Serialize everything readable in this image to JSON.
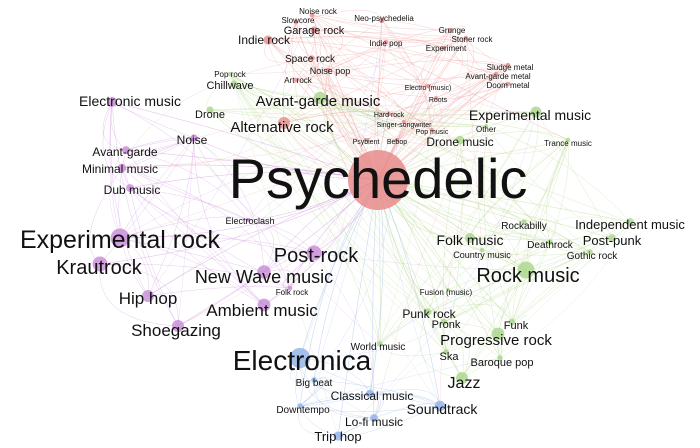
{
  "colors": {
    "red": "#e88b8b",
    "green": "#a9d68a",
    "purple": "#c78ad6",
    "blue": "#8fb1e6",
    "edge_red": "#f0a0a0",
    "edge_green": "#b7d98f",
    "edge_purple": "#cf95e0",
    "edge_blue": "#9fb9ea"
  },
  "hub": "Psychedelic",
  "nodes": [
    {
      "id": "psychedelic",
      "label": "Psychedelic",
      "group": "red",
      "weight": 100
    },
    {
      "id": "noise-rock",
      "label": "Noise rock",
      "group": "red",
      "weight": 2
    },
    {
      "id": "slowcore",
      "label": "Slowcore",
      "group": "red",
      "weight": 2
    },
    {
      "id": "neo-psychedelia",
      "label": "Neo-psychedelia",
      "group": "red",
      "weight": 3
    },
    {
      "id": "garage-rock",
      "label": "Garage rock",
      "group": "red",
      "weight": 5
    },
    {
      "id": "indie-rock",
      "label": "Indie rock",
      "group": "red",
      "weight": 8
    },
    {
      "id": "indie-pop",
      "label": "Indie pop",
      "group": "red",
      "weight": 2
    },
    {
      "id": "grunge",
      "label": "Grunge",
      "group": "red",
      "weight": 2
    },
    {
      "id": "stoner-rock",
      "label": "Stoner rock",
      "group": "red",
      "weight": 2
    },
    {
      "id": "experiment",
      "label": "Experiment",
      "group": "red",
      "weight": 2
    },
    {
      "id": "space-rock",
      "label": "Space rock",
      "group": "red",
      "weight": 3
    },
    {
      "id": "noise-pop",
      "label": "Noise pop",
      "group": "red",
      "weight": 2
    },
    {
      "id": "art-rock",
      "label": "Art rock",
      "group": "red",
      "weight": 2
    },
    {
      "id": "sludge-metal",
      "label": "Sludge metal",
      "group": "red",
      "weight": 2
    },
    {
      "id": "avant-garde-metal",
      "label": "Avant-garde metal",
      "group": "red",
      "weight": 2
    },
    {
      "id": "electro-music",
      "label": "Electro (music)",
      "group": "red",
      "weight": 1
    },
    {
      "id": "doom-metal",
      "label": "Doom metal",
      "group": "red",
      "weight": 2
    },
    {
      "id": "roots",
      "label": "Roots",
      "group": "red",
      "weight": 1
    },
    {
      "id": "pop-rock",
      "label": "Pop rock",
      "group": "green",
      "weight": 2
    },
    {
      "id": "chillwave",
      "label": "Chillwave",
      "group": "green",
      "weight": 5
    },
    {
      "id": "avant-garde-music",
      "label": "Avant-garde music",
      "group": "green",
      "weight": 15
    },
    {
      "id": "electronic-music",
      "label": "Electronic music",
      "group": "purple",
      "weight": 10
    },
    {
      "id": "drone",
      "label": "Drone",
      "group": "green",
      "weight": 5
    },
    {
      "id": "alternative-rock",
      "label": "Alternative rock",
      "group": "red",
      "weight": 14
    },
    {
      "id": "hard-rock",
      "label": "Hard rock",
      "group": "red",
      "weight": 1
    },
    {
      "id": "singer-songwriter",
      "label": "Singer-songwriter",
      "group": "red",
      "weight": 1
    },
    {
      "id": "pop-music",
      "label": "Pop music",
      "group": "red",
      "weight": 1
    },
    {
      "id": "psybient",
      "label": "Psybient",
      "group": "red",
      "weight": 1
    },
    {
      "id": "bebop",
      "label": "Bebop",
      "group": "red",
      "weight": 1
    },
    {
      "id": "experimental-music",
      "label": "Experimental music",
      "group": "green",
      "weight": 12
    },
    {
      "id": "other",
      "label": "Other",
      "group": "green",
      "weight": 1
    },
    {
      "id": "drone-music",
      "label": "Drone music",
      "group": "green",
      "weight": 7
    },
    {
      "id": "trance-music",
      "label": "Trance music",
      "group": "green",
      "weight": 2
    },
    {
      "id": "noise",
      "label": "Noise",
      "group": "purple",
      "weight": 5
    },
    {
      "id": "avant-garde",
      "label": "Avant-garde",
      "group": "purple",
      "weight": 6
    },
    {
      "id": "minimal-music",
      "label": "Minimal music",
      "group": "purple",
      "weight": 7
    },
    {
      "id": "dub-music",
      "label": "Dub music",
      "group": "purple",
      "weight": 6
    },
    {
      "id": "electroclash",
      "label": "Electroclash",
      "group": "purple",
      "weight": 2
    },
    {
      "id": "experimental-rock",
      "label": "Experimental rock",
      "group": "purple",
      "weight": 35
    },
    {
      "id": "krautrock",
      "label": "Krautrock",
      "group": "purple",
      "weight": 22
    },
    {
      "id": "post-rock",
      "label": "Post-rock",
      "group": "purple",
      "weight": 22
    },
    {
      "id": "new-wave-music",
      "label": "New Wave music",
      "group": "purple",
      "weight": 18
    },
    {
      "id": "hip-hop",
      "label": "Hip hop",
      "group": "purple",
      "weight": 14
    },
    {
      "id": "folk-rock",
      "label": "Folk rock",
      "group": "purple",
      "weight": 2
    },
    {
      "id": "ambient-music",
      "label": "Ambient music",
      "group": "purple",
      "weight": 16
    },
    {
      "id": "shoegazing",
      "label": "Shoegazing",
      "group": "purple",
      "weight": 14
    },
    {
      "id": "rockabilly",
      "label": "Rockabilly",
      "group": "green",
      "weight": 3
    },
    {
      "id": "independent-music",
      "label": "Independent music",
      "group": "green",
      "weight": 6
    },
    {
      "id": "folk-music",
      "label": "Folk music",
      "group": "green",
      "weight": 10
    },
    {
      "id": "deathrock",
      "label": "Deathrock",
      "group": "green",
      "weight": 3
    },
    {
      "id": "post-punk",
      "label": "Post-punk",
      "group": "green",
      "weight": 6
    },
    {
      "id": "country-music",
      "label": "Country music",
      "group": "green",
      "weight": 2
    },
    {
      "id": "gothic-rock",
      "label": "Gothic rock",
      "group": "green",
      "weight": 3
    },
    {
      "id": "rock-music",
      "label": "Rock music",
      "group": "green",
      "weight": 28
    },
    {
      "id": "fusion-music",
      "label": "Fusion (music)",
      "group": "green",
      "weight": 1
    },
    {
      "id": "punk-rock",
      "label": "Punk rock",
      "group": "green",
      "weight": 5
    },
    {
      "id": "pronk",
      "label": "Pronk",
      "group": "green",
      "weight": 4
    },
    {
      "id": "funk",
      "label": "Funk",
      "group": "green",
      "weight": 4
    },
    {
      "id": "progressive-rock",
      "label": "Progressive rock",
      "group": "green",
      "weight": 16
    },
    {
      "id": "world-music",
      "label": "World music",
      "group": "green",
      "weight": 3
    },
    {
      "id": "ska",
      "label": "Ska",
      "group": "green",
      "weight": 3
    },
    {
      "id": "baroque-pop",
      "label": "Baroque pop",
      "group": "green",
      "weight": 3
    },
    {
      "id": "electronica",
      "label": "Electronica",
      "group": "blue",
      "weight": 40
    },
    {
      "id": "jazz",
      "label": "Jazz",
      "group": "green",
      "weight": 14
    },
    {
      "id": "big-beat",
      "label": "Big beat",
      "group": "blue",
      "weight": 3
    },
    {
      "id": "classical-music",
      "label": "Classical music",
      "group": "blue",
      "weight": 7
    },
    {
      "id": "downtempo",
      "label": "Downtempo",
      "group": "blue",
      "weight": 3
    },
    {
      "id": "soundtrack",
      "label": "Soundtrack",
      "group": "blue",
      "weight": 11
    },
    {
      "id": "lo-fi-music",
      "label": "Lo-fi music",
      "group": "blue",
      "weight": 6
    },
    {
      "id": "trip-hop",
      "label": "Trip hop",
      "group": "blue",
      "weight": 8
    }
  ]
}
